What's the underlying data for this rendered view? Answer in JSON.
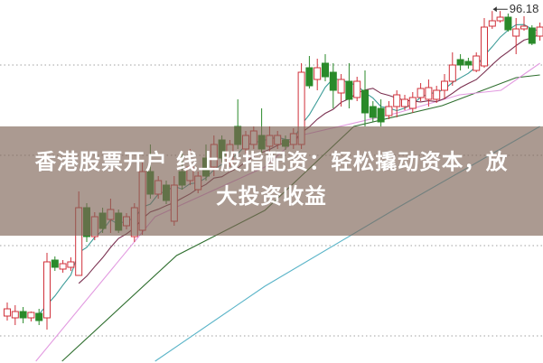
{
  "banner": {
    "line1": "香港股票开户 线上股指配资：轻松撬动资本，放",
    "line2": "大投资收益"
  },
  "chart_data": {
    "type": "candlestick",
    "title": "",
    "max_label": "96.18",
    "grid": "horizontal dotted",
    "colors": {
      "up": "#d0303a",
      "down": "#2a8a2a",
      "ma5": "#3c9c98",
      "ma10": "#7a3050",
      "ma_pink": "#e29ae0",
      "ma_green": "#2e6e2e",
      "ma_blue": "#5ab4c8",
      "grid": "#a0a0a0"
    },
    "ohlc_fields": [
      "open",
      "close",
      "high",
      "low"
    ],
    "candles": [
      [
        62.4,
        63.2,
        63.9,
        61.9
      ],
      [
        62.2,
        62.9,
        63.6,
        61.4
      ],
      [
        62.9,
        62.2,
        63.4,
        61.6
      ],
      [
        62.2,
        62.8,
        62.9,
        61.8
      ],
      [
        62.7,
        61.9,
        63.2,
        61.4
      ],
      [
        62.2,
        68.4,
        69.4,
        60.9
      ],
      [
        68.6,
        67.8,
        69.0,
        67.4
      ],
      [
        67.6,
        68.2,
        68.6,
        67.2
      ],
      [
        67.8,
        68.4,
        68.9,
        67.4
      ],
      [
        66.9,
        74.4,
        76.2,
        66.9
      ],
      [
        74.4,
        71.2,
        74.9,
        70.6
      ],
      [
        71.2,
        73.4,
        73.9,
        70.8
      ],
      [
        73.8,
        72.1,
        74.4,
        71.6
      ],
      [
        73.1,
        74.2,
        75.4,
        71.6
      ],
      [
        73.8,
        71.9,
        74.2,
        71.6
      ],
      [
        72.4,
        73.4,
        73.8,
        72.0
      ],
      [
        71.2,
        74.4,
        74.9,
        70.6
      ],
      [
        71.9,
        78.4,
        79.4,
        71.4
      ],
      [
        78.4,
        75.9,
        81.4,
        75.4
      ],
      [
        75.9,
        77.4,
        77.9,
        75.4
      ],
      [
        76.9,
        75.2,
        77.4,
        74.8
      ],
      [
        72.9,
        76.9,
        77.9,
        72.4
      ],
      [
        78.4,
        76.9,
        80.4,
        76.4
      ],
      [
        77.4,
        78.9,
        80.9,
        76.9
      ],
      [
        76.4,
        77.9,
        78.4,
        76.0
      ],
      [
        79.9,
        77.9,
        81.4,
        77.4
      ],
      [
        78.9,
        81.4,
        82.4,
        77.9
      ],
      [
        81.9,
        79.9,
        82.4,
        79.4
      ],
      [
        79.4,
        81.4,
        81.9,
        78.9
      ],
      [
        83.4,
        81.4,
        86.4,
        80.9
      ],
      [
        80.9,
        82.4,
        82.9,
        80.4
      ],
      [
        81.4,
        82.9,
        83.4,
        80.9
      ],
      [
        82.4,
        80.9,
        85.4,
        80.4
      ],
      [
        81.2,
        82.4,
        83.4,
        80.4
      ],
      [
        81.4,
        82.4,
        82.9,
        80.9
      ],
      [
        81.9,
        81.2,
        82.4,
        80.8
      ],
      [
        81.4,
        82.6,
        83.2,
        80.9
      ],
      [
        81.4,
        89.4,
        90.4,
        80.9
      ],
      [
        89.9,
        87.9,
        91.2,
        87.6
      ],
      [
        88.6,
        89.9,
        90.9,
        87.4
      ],
      [
        90.4,
        88.9,
        91.4,
        88.4
      ],
      [
        89.4,
        87.4,
        90.4,
        85.4
      ],
      [
        87.1,
        88.6,
        89.2,
        85.6
      ],
      [
        88.4,
        86.4,
        90.4,
        85.4
      ],
      [
        86.6,
        88.4,
        88.9,
        86.2
      ],
      [
        87.4,
        84.9,
        89.6,
        83.4
      ],
      [
        85.6,
        84.4,
        86.2,
        83.9
      ],
      [
        85.4,
        83.9,
        86.4,
        83.4
      ],
      [
        84.6,
        85.6,
        86.2,
        84.2
      ],
      [
        85.6,
        86.9,
        87.4,
        84.4
      ],
      [
        85.6,
        86.4,
        86.9,
        85.2
      ],
      [
        85.4,
        86.6,
        87.2,
        84.9
      ],
      [
        86.6,
        87.6,
        88.2,
        86.2
      ],
      [
        86.4,
        87.7,
        88.6,
        85.6
      ],
      [
        86.4,
        87.4,
        87.9,
        86.0
      ],
      [
        87.4,
        88.4,
        89.2,
        86.4
      ],
      [
        88.4,
        90.2,
        91.6,
        87.9
      ],
      [
        90.8,
        90.2,
        91.4,
        89.6
      ],
      [
        90.6,
        90.2,
        91.0,
        89.8
      ],
      [
        89.6,
        91.2,
        91.6,
        89.4
      ],
      [
        90.1,
        94.4,
        95.4,
        89.9
      ],
      [
        94.5,
        95.1,
        96.18,
        94.2
      ],
      [
        95.1,
        95.5,
        96.18,
        94.9
      ],
      [
        95.5,
        94.1,
        95.9,
        93.9
      ],
      [
        93.4,
        94.2,
        95.4,
        91.4
      ],
      [
        94.2,
        94.5,
        95.6,
        94.0
      ],
      [
        94.3,
        92.6,
        94.6,
        92.4
      ],
      [
        93.4,
        94.4,
        94.9,
        92.9
      ]
    ],
    "moving_averages_computed": [
      5,
      10
    ],
    "long_moving_averages": {
      "pink": [
        [
          3.6,
          57.4
        ],
        [
          18.6,
          73.4
        ],
        [
          32.4,
          78.9
        ],
        [
          36.9,
          82.4
        ],
        [
          49.1,
          84.9
        ],
        [
          56.9,
          86.9
        ],
        [
          62.1,
          87.4
        ],
        [
          67,
          90.4
        ]
      ],
      "green": [
        [
          6.9,
          57.4
        ],
        [
          21.3,
          69.1
        ],
        [
          32.4,
          74.1
        ],
        [
          43.6,
          83.4
        ],
        [
          54.7,
          85.7
        ],
        [
          64,
          88.8
        ],
        [
          67,
          89.1
        ]
      ],
      "blue": [
        [
          18.6,
          57.4
        ],
        [
          32.4,
          65.7
        ],
        [
          49.1,
          74.4
        ],
        [
          67,
          83.4
        ]
      ]
    },
    "grid_levels": [
      90.2,
      80.2,
      70.2,
      60.2
    ]
  }
}
